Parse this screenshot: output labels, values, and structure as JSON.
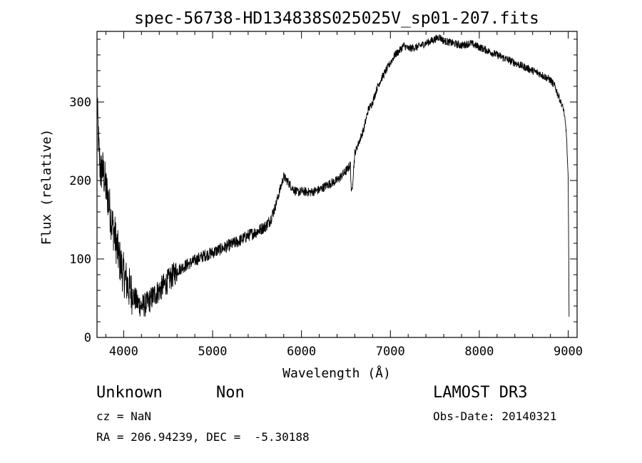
{
  "chart_data": {
    "type": "line",
    "title": "spec-56738-HD134838S025025V_sp01-207.fits",
    "xlabel": "Wavelength (Å)",
    "ylabel": "Flux (relative)",
    "xlim": [
      3700,
      9100
    ],
    "ylim": [
      0,
      390
    ],
    "xticks": [
      4000,
      5000,
      6000,
      7000,
      8000,
      9000
    ],
    "yticks": [
      0,
      100,
      200,
      300
    ],
    "grid": false,
    "series": [
      {
        "x": [
          3700,
          3720,
          3740,
          3760,
          3780,
          3800,
          3830,
          3860,
          3900,
          3950,
          4000,
          4050,
          4100,
          4150,
          4200,
          4250,
          4300,
          4350,
          4400,
          4450,
          4500,
          4600,
          4700,
          4800,
          4900,
          5000,
          5100,
          5200,
          5300,
          5400,
          5500,
          5600,
          5650,
          5700,
          5750,
          5800,
          5850,
          5900,
          5950,
          6000,
          6100,
          6200,
          6300,
          6400,
          6500,
          6550,
          6563,
          6600,
          6650,
          6700,
          6750,
          6800,
          6850,
          6900,
          6950,
          7000,
          7050,
          7100,
          7150,
          7200,
          7300,
          7400,
          7500,
          7550,
          7600,
          7700,
          7800,
          7900,
          8000,
          8100,
          8200,
          8300,
          8400,
          8500,
          8600,
          8700,
          8800,
          8850,
          8900,
          8950,
          8980,
          9000,
          9010
        ],
        "y": [
          300,
          240,
          210,
          215,
          205,
          190,
          175,
          150,
          130,
          100,
          80,
          65,
          55,
          45,
          40,
          42,
          48,
          55,
          60,
          66,
          72,
          85,
          92,
          98,
          104,
          108,
          113,
          118,
          123,
          130,
          135,
          142,
          150,
          165,
          185,
          205,
          198,
          190,
          185,
          186,
          185,
          188,
          195,
          200,
          212,
          220,
          180,
          235,
          250,
          265,
          290,
          300,
          318,
          330,
          340,
          350,
          360,
          365,
          372,
          368,
          370,
          375,
          380,
          383,
          378,
          375,
          372,
          375,
          370,
          365,
          360,
          355,
          350,
          345,
          340,
          335,
          328,
          320,
          305,
          290,
          260,
          200,
          30
        ]
      }
    ],
    "annotations": {
      "object_class": "Unknown",
      "subclass": "Non",
      "survey": "LAMOST DR3",
      "redshift": "cz = NaN",
      "obs_date": "Obs-Date: 20140321",
      "coords": "RA = 206.94239, DEC =  -5.30188"
    }
  }
}
